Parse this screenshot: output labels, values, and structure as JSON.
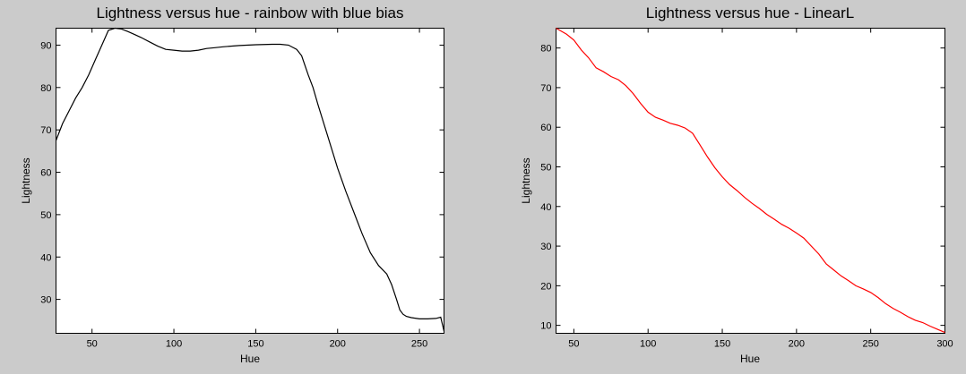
{
  "chart_data": [
    {
      "type": "line",
      "title": "Lightness versus hue - rainbow with blue bias",
      "xlabel": "Hue",
      "ylabel": "Lightness",
      "xlim": [
        28,
        265
      ],
      "ylim": [
        22,
        94
      ],
      "xticks": [
        50,
        100,
        150,
        200,
        250
      ],
      "yticks": [
        30,
        40,
        50,
        60,
        70,
        80,
        90
      ],
      "grid": false,
      "line_color": "#000000",
      "series": [
        {
          "x": [
            28,
            32,
            36,
            40,
            44,
            48,
            52,
            56,
            60,
            64,
            68,
            72,
            76,
            80,
            85,
            90,
            95,
            100,
            105,
            110,
            115,
            120,
            125,
            130,
            140,
            150,
            160,
            165,
            170,
            175,
            178,
            182,
            185,
            188,
            192,
            196,
            200,
            205,
            210,
            215,
            220,
            225,
            230,
            233,
            236,
            238,
            240,
            242,
            245,
            250,
            255,
            260,
            263,
            265
          ],
          "y": [
            67.5,
            71.5,
            74.5,
            77.5,
            80,
            83,
            86.5,
            90,
            93.5,
            94,
            93.8,
            93.2,
            92.5,
            91.8,
            90.8,
            89.8,
            89,
            88.8,
            88.6,
            88.6,
            88.8,
            89.2,
            89.4,
            89.6,
            89.9,
            90.1,
            90.2,
            90.2,
            90,
            89,
            87.5,
            83,
            80,
            76,
            71,
            66,
            61,
            55.5,
            50.5,
            45.5,
            41,
            38,
            36,
            33.5,
            30,
            27.5,
            26.5,
            26,
            25.7,
            25.4,
            25.4,
            25.5,
            25.8,
            22.5
          ]
        }
      ]
    },
    {
      "type": "line",
      "title": "Lightness versus hue - LinearL",
      "xlabel": "Hue",
      "ylabel": "Lightness",
      "xlim": [
        38,
        300
      ],
      "ylim": [
        8,
        85
      ],
      "xticks": [
        50,
        100,
        150,
        200,
        250,
        300
      ],
      "yticks": [
        10,
        20,
        30,
        40,
        50,
        60,
        70,
        80
      ],
      "grid": false,
      "line_color": "#ff0000",
      "series": [
        {
          "x": [
            38,
            45,
            50,
            55,
            60,
            65,
            70,
            75,
            80,
            85,
            90,
            95,
            100,
            105,
            110,
            115,
            120,
            125,
            130,
            135,
            140,
            145,
            150,
            155,
            160,
            165,
            170,
            175,
            180,
            185,
            190,
            195,
            200,
            205,
            210,
            215,
            220,
            225,
            230,
            235,
            240,
            245,
            250,
            255,
            260,
            265,
            270,
            275,
            280,
            285,
            290,
            295,
            300
          ],
          "y": [
            85,
            83.5,
            82,
            79.5,
            77.5,
            75,
            74,
            72.8,
            72,
            70.5,
            68.5,
            66,
            63.8,
            62.5,
            61.8,
            61,
            60.5,
            59.8,
            58.5,
            55.5,
            52.5,
            49.8,
            47.5,
            45.5,
            44,
            42.3,
            40.8,
            39.5,
            38,
            36.8,
            35.5,
            34.5,
            33.3,
            32,
            30,
            28,
            25.5,
            24,
            22.5,
            21.3,
            20,
            19.2,
            18.3,
            17,
            15.5,
            14.3,
            13.3,
            12.2,
            11.3,
            10.7,
            9.8,
            9,
            8.2
          ]
        }
      ]
    }
  ]
}
